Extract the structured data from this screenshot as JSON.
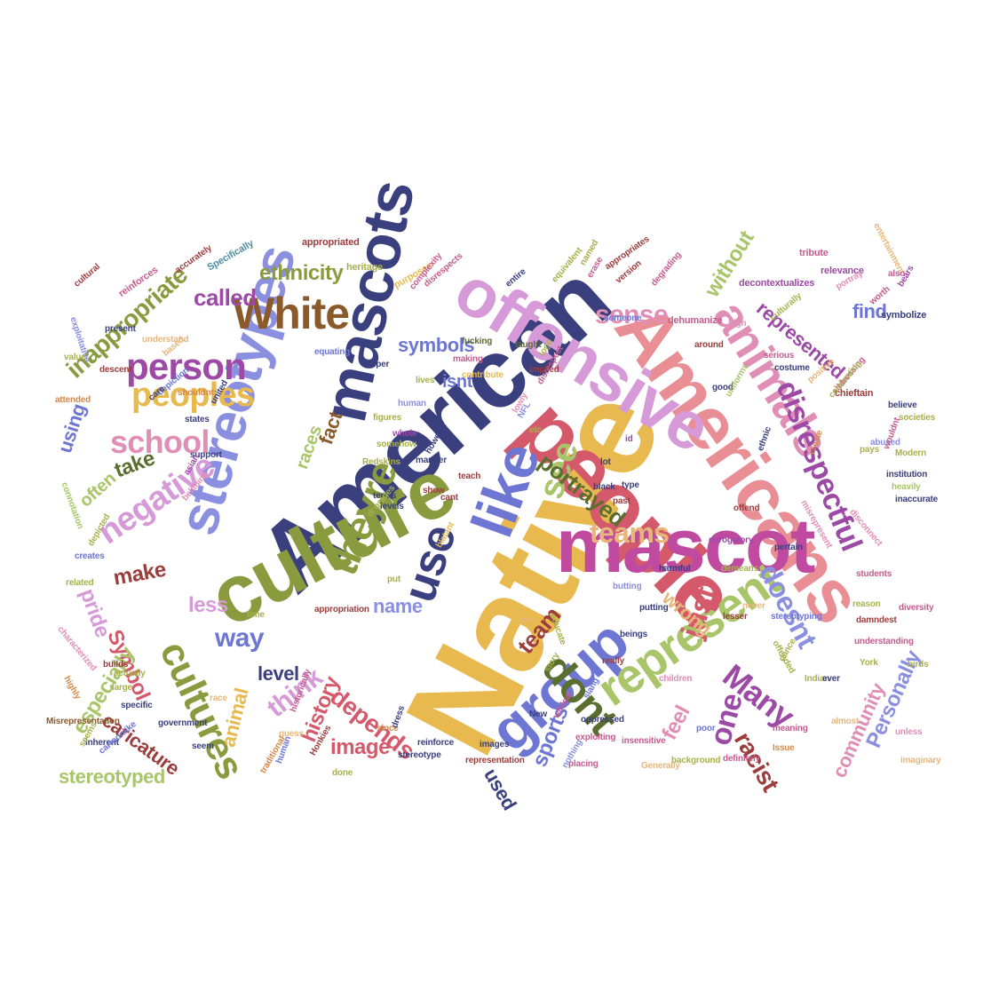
{
  "colors": {
    "navy": "#3a3f7e",
    "pink": "#e08eb6",
    "lilac": "#d69ad8",
    "red": "#d45a6b",
    "salmon": "#e88e94",
    "gold": "#e8b94e",
    "green": "#8a9b3f",
    "darkgreen": "#5a6e2f",
    "blue": "#6d76d3",
    "purple": "#9c4aa6",
    "brown": "#8a5a2a",
    "maroon": "#9c3d3d",
    "olive": "#a8b04e",
    "lightgreen": "#a9c56a",
    "tan": "#e7b67a",
    "rose": "#c45c90",
    "magenta": "#c04aa0",
    "teal": "#4f8fa6",
    "orange": "#d2884a",
    "periwinkle": "#8a8fe0"
  },
  "words": [
    {
      "text": "Native",
      "color": "gold"
    },
    {
      "text": "American",
      "color": "navy"
    },
    {
      "text": "people",
      "color": "red"
    },
    {
      "text": "Americans",
      "color": "salmon"
    },
    {
      "text": "culture",
      "color": "green"
    },
    {
      "text": "offensive",
      "color": "lilac"
    },
    {
      "text": "mascot",
      "color": "magenta"
    },
    {
      "text": "mascots",
      "color": "navy"
    },
    {
      "text": "like",
      "color": "blue"
    },
    {
      "text": "stereotypes",
      "color": "periwinkle"
    },
    {
      "text": "group",
      "color": "blue"
    },
    {
      "text": "animals",
      "color": "pink"
    },
    {
      "text": "represent",
      "color": "lightgreen"
    },
    {
      "text": "dont",
      "color": "darkgreen"
    },
    {
      "text": "use",
      "color": "navy"
    },
    {
      "text": "theyre",
      "color": "green"
    },
    {
      "text": "disrespectful",
      "color": "purple"
    },
    {
      "text": "cultures",
      "color": "green"
    },
    {
      "text": "White",
      "color": "brown"
    },
    {
      "text": "person",
      "color": "purple"
    },
    {
      "text": "peoples",
      "color": "gold"
    },
    {
      "text": "school",
      "color": "pink"
    },
    {
      "text": "negative",
      "color": "lilac"
    },
    {
      "text": "see",
      "color": "lightgreen"
    },
    {
      "text": "teams",
      "color": "tan"
    },
    {
      "text": "doesnt",
      "color": "periwinkle"
    },
    {
      "text": "just",
      "color": "red"
    },
    {
      "text": "one",
      "color": "purple"
    },
    {
      "text": "Many",
      "color": "purple"
    },
    {
      "text": "sense",
      "color": "pink"
    },
    {
      "text": "represented",
      "color": "purple"
    },
    {
      "text": "inappropriate",
      "color": "green"
    },
    {
      "text": "called",
      "color": "purple"
    },
    {
      "text": "ethnicity",
      "color": "green"
    },
    {
      "text": "without",
      "color": "lightgreen"
    },
    {
      "text": "find",
      "color": "blue"
    },
    {
      "text": "symbols",
      "color": "blue"
    },
    {
      "text": "isnt",
      "color": "blue"
    },
    {
      "text": "fact",
      "color": "brown"
    },
    {
      "text": "races",
      "color": "lightgreen"
    },
    {
      "text": "portrayed",
      "color": "darkgreen"
    },
    {
      "text": "take",
      "color": "darkgreen"
    },
    {
      "text": "often",
      "color": "lightgreen"
    },
    {
      "text": "using",
      "color": "blue"
    },
    {
      "text": "make",
      "color": "maroon"
    },
    {
      "text": "Symbol",
      "color": "red"
    },
    {
      "text": "pride",
      "color": "lilac"
    },
    {
      "text": "less",
      "color": "lilac"
    },
    {
      "text": "way",
      "color": "blue"
    },
    {
      "text": "name",
      "color": "periwinkle"
    },
    {
      "text": "level",
      "color": "navy"
    },
    {
      "text": "think",
      "color": "lilac"
    },
    {
      "text": "especially",
      "color": "lightgreen"
    },
    {
      "text": "caricature",
      "color": "maroon"
    },
    {
      "text": "animal",
      "color": "gold"
    },
    {
      "text": "history",
      "color": "red"
    },
    {
      "text": "depends",
      "color": "red"
    },
    {
      "text": "image",
      "color": "red"
    },
    {
      "text": "team",
      "color": "maroon"
    },
    {
      "text": "wrong",
      "color": "tan"
    },
    {
      "text": "feel",
      "color": "pink"
    },
    {
      "text": "racist",
      "color": "maroon"
    },
    {
      "text": "community",
      "color": "pink"
    },
    {
      "text": "Personally",
      "color": "periwinkle"
    },
    {
      "text": "stereotyped",
      "color": "lightgreen"
    },
    {
      "text": "sports",
      "color": "blue"
    },
    {
      "text": "used",
      "color": "navy"
    },
    {
      "text": "Misrepresentation",
      "color": "brown"
    },
    {
      "text": "appropriation",
      "color": "maroon"
    },
    {
      "text": "Specifically",
      "color": "teal"
    },
    {
      "text": "accurately",
      "color": "maroon"
    },
    {
      "text": "exploitative",
      "color": "periwinkle"
    },
    {
      "text": "cultural",
      "color": "maroon"
    },
    {
      "text": "heritage",
      "color": "olive"
    },
    {
      "text": "reinforces",
      "color": "rose"
    },
    {
      "text": "appropriated",
      "color": "maroon"
    },
    {
      "text": "purposes",
      "color": "gold"
    },
    {
      "text": "complexity",
      "color": "rose"
    },
    {
      "text": "disrespects",
      "color": "rose"
    },
    {
      "text": "equivalent",
      "color": "olive"
    },
    {
      "text": "named",
      "color": "olive"
    },
    {
      "text": "erase",
      "color": "rose"
    },
    {
      "text": "appropriates",
      "color": "maroon"
    },
    {
      "text": "version",
      "color": "maroon"
    },
    {
      "text": "degrading",
      "color": "rose"
    },
    {
      "text": "decontextualizes",
      "color": "purple"
    },
    {
      "text": "tribute",
      "color": "rose"
    },
    {
      "text": "relevance",
      "color": "purple"
    },
    {
      "text": "entertainment",
      "color": "tan"
    },
    {
      "text": "bears",
      "color": "purple"
    },
    {
      "text": "symbolize",
      "color": "navy"
    },
    {
      "text": "culturally",
      "color": "olive"
    },
    {
      "text": "portray",
      "color": "pink"
    },
    {
      "text": "also",
      "color": "rose"
    },
    {
      "text": "worth",
      "color": "rose"
    },
    {
      "text": "someone",
      "color": "blue"
    },
    {
      "text": "dehumanize",
      "color": "rose"
    },
    {
      "text": "high",
      "color": "pink"
    },
    {
      "text": "present",
      "color": "navy"
    },
    {
      "text": "understand",
      "color": "tan"
    },
    {
      "text": "based",
      "color": "tan"
    },
    {
      "text": "value",
      "color": "olive"
    },
    {
      "text": "descent",
      "color": "maroon"
    },
    {
      "text": "depiction",
      "color": "blue"
    },
    {
      "text": "attended",
      "color": "orange"
    },
    {
      "text": "equating",
      "color": "blue"
    },
    {
      "text": "super",
      "color": "navy"
    },
    {
      "text": "taught",
      "color": "darkgreen"
    },
    {
      "text": "logo",
      "color": "olive"
    },
    {
      "text": "lives",
      "color": "olive"
    },
    {
      "text": "making",
      "color": "rose"
    },
    {
      "text": "contribute",
      "color": "gold"
    },
    {
      "text": "implied",
      "color": "maroon"
    },
    {
      "text": "disrespect",
      "color": "rose"
    },
    {
      "text": "human",
      "color": "periwinkle"
    },
    {
      "text": "around",
      "color": "maroon"
    },
    {
      "text": "serious",
      "color": "rose"
    },
    {
      "text": "costume",
      "color": "navy"
    },
    {
      "text": "chieftain",
      "color": "maroon"
    },
    {
      "text": "positive",
      "color": "tan"
    },
    {
      "text": "good",
      "color": "navy"
    },
    {
      "text": "addressing",
      "color": "rose"
    },
    {
      "text": "celebrating",
      "color": "olive"
    },
    {
      "text": "believe",
      "color": "navy"
    },
    {
      "text": "societies",
      "color": "olive"
    },
    {
      "text": "shouldnt",
      "color": "orange"
    },
    {
      "text": "care",
      "color": "navy"
    },
    {
      "text": "united",
      "color": "navy"
    },
    {
      "text": "figures",
      "color": "olive"
    },
    {
      "text": "lowly",
      "color": "pink"
    },
    {
      "text": "whole",
      "color": "purple"
    },
    {
      "text": "uniforms",
      "color": "lightgreen"
    },
    {
      "text": "abused",
      "color": "periwinkle"
    },
    {
      "text": "Modern",
      "color": "olive"
    },
    {
      "text": "pays",
      "color": "olive"
    },
    {
      "text": "wouldnt",
      "color": "rose"
    },
    {
      "text": "institution",
      "color": "navy"
    },
    {
      "text": "heavily",
      "color": "lightgreen"
    },
    {
      "text": "inaccurate",
      "color": "navy"
    },
    {
      "text": "create",
      "color": "orange"
    },
    {
      "text": "ethnic",
      "color": "navy"
    },
    {
      "text": "offend",
      "color": "maroon"
    },
    {
      "text": "disconnect",
      "color": "pink"
    },
    {
      "text": "black",
      "color": "navy"
    },
    {
      "text": "lot",
      "color": "navy"
    },
    {
      "text": "etc",
      "color": "olive"
    },
    {
      "text": "NFL",
      "color": "periwinkle"
    },
    {
      "text": "Redskins",
      "color": "olive"
    },
    {
      "text": "somehow",
      "color": "olive"
    },
    {
      "text": "however",
      "color": "navy"
    },
    {
      "text": "manner",
      "color": "navy"
    },
    {
      "text": "support",
      "color": "navy"
    },
    {
      "text": "connotation",
      "color": "lightgreen"
    },
    {
      "text": "asian",
      "color": "purple"
    },
    {
      "text": "creates",
      "color": "blue"
    },
    {
      "text": "depicted",
      "color": "olive"
    },
    {
      "text": "belittling",
      "color": "pink"
    },
    {
      "text": "terms",
      "color": "navy"
    },
    {
      "text": "levels",
      "color": "navy"
    },
    {
      "text": "degrades",
      "color": "olive"
    },
    {
      "text": "show",
      "color": "maroon"
    },
    {
      "text": "cant",
      "color": "maroon"
    },
    {
      "text": "type",
      "color": "navy"
    },
    {
      "text": "related",
      "color": "olive"
    },
    {
      "text": "states",
      "color": "navy"
    },
    {
      "text": "fucking",
      "color": "darkgreen"
    },
    {
      "text": "teach",
      "color": "maroon"
    },
    {
      "text": "past",
      "color": "maroon"
    },
    {
      "text": "id",
      "color": "purple"
    },
    {
      "text": "blatant",
      "color": "gold"
    },
    {
      "text": "derogatory",
      "color": "purple"
    },
    {
      "text": "demeans",
      "color": "olive"
    },
    {
      "text": "pertain",
      "color": "navy"
    },
    {
      "text": "misrepresent",
      "color": "pink"
    },
    {
      "text": "students",
      "color": "rose"
    },
    {
      "text": "harmful",
      "color": "navy"
    },
    {
      "text": "never",
      "color": "tan"
    },
    {
      "text": "reason",
      "color": "olive"
    },
    {
      "text": "damndest",
      "color": "maroon"
    },
    {
      "text": "diversity",
      "color": "rose"
    },
    {
      "text": "stereotyping",
      "color": "blue"
    },
    {
      "text": "lesser",
      "color": "maroon"
    },
    {
      "text": "time",
      "color": "olive"
    },
    {
      "text": "characterized",
      "color": "pink"
    },
    {
      "text": "put",
      "color": "olive"
    },
    {
      "text": "live",
      "color": "tan"
    },
    {
      "text": "educate",
      "color": "olive"
    },
    {
      "text": "butting",
      "color": "periwinkle"
    },
    {
      "text": "putting",
      "color": "navy"
    },
    {
      "text": "builds",
      "color": "maroon"
    },
    {
      "text": "offended",
      "color": "olive"
    },
    {
      "text": "understanding",
      "color": "rose"
    },
    {
      "text": "Indian",
      "color": "olive"
    },
    {
      "text": "dance",
      "color": "olive"
    },
    {
      "text": "children",
      "color": "pink"
    },
    {
      "text": "beings",
      "color": "navy"
    },
    {
      "text": "really",
      "color": "maroon"
    },
    {
      "text": "actually",
      "color": "olive"
    },
    {
      "text": "birds",
      "color": "olive"
    },
    {
      "text": "York",
      "color": "olive"
    },
    {
      "text": "ever",
      "color": "navy"
    },
    {
      "text": "large",
      "color": "olive"
    },
    {
      "text": "specific",
      "color": "navy"
    },
    {
      "text": "government",
      "color": "navy"
    },
    {
      "text": "race",
      "color": "tan"
    },
    {
      "text": "highly",
      "color": "orange"
    },
    {
      "text": "slang",
      "color": "blue"
    },
    {
      "text": "story",
      "color": "olive"
    },
    {
      "text": "wildcat",
      "color": "rose"
    },
    {
      "text": "New",
      "color": "navy"
    },
    {
      "text": "since",
      "color": "orange"
    },
    {
      "text": "historically",
      "color": "rose"
    },
    {
      "text": "seem",
      "color": "navy"
    },
    {
      "text": "guess",
      "color": "tan"
    },
    {
      "text": "human",
      "color": "blue"
    },
    {
      "text": "insensitive",
      "color": "rose"
    },
    {
      "text": "background",
      "color": "olive"
    },
    {
      "text": "almost",
      "color": "tan"
    },
    {
      "text": "unless",
      "color": "pink"
    },
    {
      "text": "meaning",
      "color": "rose"
    },
    {
      "text": "definitely",
      "color": "rose"
    },
    {
      "text": "Issue",
      "color": "orange"
    },
    {
      "text": "imaginary",
      "color": "tan"
    },
    {
      "text": "poor",
      "color": "blue"
    },
    {
      "text": "Generally",
      "color": "tan"
    },
    {
      "text": "exploiting",
      "color": "rose"
    },
    {
      "text": "placing",
      "color": "rose"
    },
    {
      "text": "nothing",
      "color": "periwinkle"
    },
    {
      "text": "oppressed",
      "color": "navy"
    },
    {
      "text": "images",
      "color": "navy"
    },
    {
      "text": "representation",
      "color": "maroon"
    },
    {
      "text": "reinforce",
      "color": "navy"
    },
    {
      "text": "stereotype",
      "color": "navy"
    },
    {
      "text": "dress",
      "color": "navy"
    },
    {
      "text": "done",
      "color": "olive"
    },
    {
      "text": "Honkies",
      "color": "maroon"
    },
    {
      "text": "traditional",
      "color": "orange"
    },
    {
      "text": "inherent",
      "color": "navy"
    },
    {
      "text": "cartoonlike",
      "color": "blue"
    },
    {
      "text": "seems",
      "color": "olive"
    },
    {
      "text": "entire",
      "color": "navy"
    }
  ]
}
